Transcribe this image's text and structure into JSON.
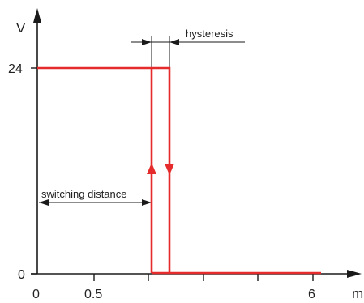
{
  "diagram": {
    "y_axis_label": "V",
    "x_axis_label": "mm",
    "y_ticks": [
      "24",
      "0"
    ],
    "x_ticks": [
      "0",
      "0.5",
      "6"
    ],
    "annotations": {
      "hysteresis": "hysteresis",
      "switching_distance": "switching distance"
    },
    "colors": {
      "signal": "#e52b2b",
      "axis": "#1a1a1a"
    }
  }
}
